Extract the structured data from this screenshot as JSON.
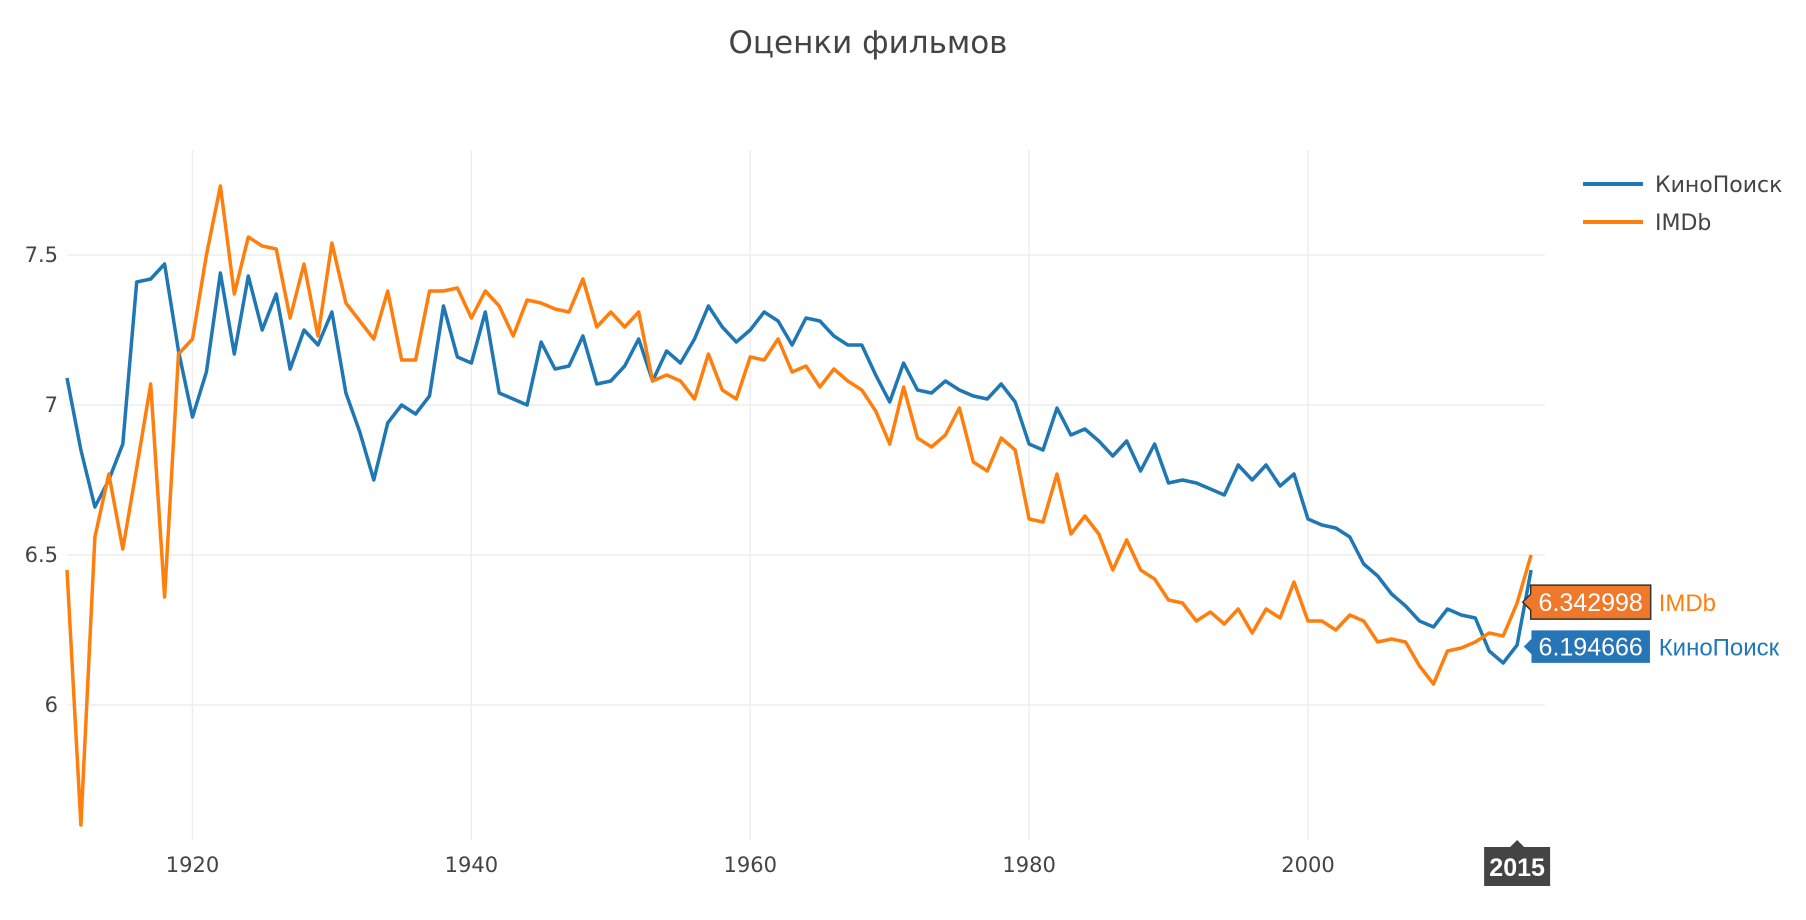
{
  "chart_data": {
    "type": "line",
    "title": "Оценки фильмов",
    "xlabel": "",
    "ylabel": "",
    "xlim": [
      1911,
      2017
    ],
    "ylim": [
      5.55,
      7.85
    ],
    "x_ticks": [
      1920,
      1940,
      1960,
      1980,
      2000
    ],
    "y_ticks": [
      6,
      6.5,
      7,
      7.5
    ],
    "y_tick_labels": [
      "6",
      "6.5",
      "7",
      "7.5"
    ],
    "grid": true,
    "legend_position": "top-right",
    "x": [
      1911,
      1912,
      1913,
      1914,
      1915,
      1916,
      1917,
      1918,
      1919,
      1920,
      1921,
      1922,
      1923,
      1924,
      1925,
      1926,
      1927,
      1928,
      1929,
      1930,
      1931,
      1932,
      1933,
      1934,
      1935,
      1936,
      1937,
      1938,
      1939,
      1940,
      1941,
      1942,
      1943,
      1944,
      1945,
      1946,
      1947,
      1948,
      1949,
      1950,
      1951,
      1952,
      1953,
      1954,
      1955,
      1956,
      1957,
      1958,
      1959,
      1960,
      1961,
      1962,
      1963,
      1964,
      1965,
      1966,
      1967,
      1968,
      1969,
      1970,
      1971,
      1972,
      1973,
      1974,
      1975,
      1976,
      1977,
      1978,
      1979,
      1980,
      1981,
      1982,
      1983,
      1984,
      1985,
      1986,
      1987,
      1988,
      1989,
      1990,
      1991,
      1992,
      1993,
      1994,
      1995,
      1996,
      1997,
      1998,
      1999,
      2000,
      2001,
      2002,
      2003,
      2004,
      2005,
      2006,
      2007,
      2008,
      2009,
      2010,
      2011,
      2012,
      2013,
      2014,
      2015,
      2016
    ],
    "series": [
      {
        "name": "КиноПоиск",
        "color": "#1f77b4",
        "values": [
          7.09,
          6.85,
          6.66,
          6.75,
          6.87,
          7.41,
          7.42,
          7.47,
          7.18,
          6.96,
          7.11,
          7.44,
          7.17,
          7.43,
          7.25,
          7.37,
          7.12,
          7.25,
          7.2,
          7.31,
          7.04,
          6.91,
          6.75,
          6.94,
          7.0,
          6.97,
          7.03,
          7.33,
          7.16,
          7.14,
          7.31,
          7.04,
          7.02,
          7.0,
          7.21,
          7.12,
          7.13,
          7.23,
          7.07,
          7.08,
          7.13,
          7.22,
          7.08,
          7.18,
          7.14,
          7.22,
          7.33,
          7.26,
          7.21,
          7.25,
          7.31,
          7.28,
          7.2,
          7.29,
          7.28,
          7.23,
          7.2,
          7.2,
          7.1,
          7.01,
          7.14,
          7.05,
          7.04,
          7.08,
          7.05,
          7.03,
          7.02,
          7.07,
          7.01,
          6.87,
          6.85,
          6.99,
          6.9,
          6.92,
          6.88,
          6.83,
          6.88,
          6.78,
          6.87,
          6.74,
          6.75,
          6.74,
          6.72,
          6.7,
          6.8,
          6.75,
          6.8,
          6.73,
          6.77,
          6.62,
          6.6,
          6.59,
          6.56,
          6.47,
          6.43,
          6.37,
          6.33,
          6.28,
          6.26,
          6.32,
          6.3,
          6.29,
          6.18,
          6.14,
          6.2,
          6.45
        ]
      },
      {
        "name": "IMDb",
        "color": "#ff7f0e",
        "values": [
          6.45,
          5.6,
          6.56,
          6.77,
          6.52,
          6.79,
          7.07,
          6.36,
          7.17,
          7.22,
          7.5,
          7.73,
          7.37,
          7.56,
          7.53,
          7.52,
          7.29,
          7.47,
          7.23,
          7.54,
          7.34,
          7.28,
          7.22,
          7.38,
          7.15,
          7.15,
          7.38,
          7.38,
          7.39,
          7.29,
          7.38,
          7.33,
          7.23,
          7.35,
          7.34,
          7.32,
          7.31,
          7.42,
          7.26,
          7.31,
          7.26,
          7.31,
          7.08,
          7.1,
          7.08,
          7.02,
          7.17,
          7.05,
          7.02,
          7.16,
          7.15,
          7.22,
          7.11,
          7.13,
          7.06,
          7.12,
          7.08,
          7.05,
          6.98,
          6.87,
          7.06,
          6.89,
          6.86,
          6.9,
          6.99,
          6.81,
          6.78,
          6.89,
          6.85,
          6.62,
          6.61,
          6.77,
          6.57,
          6.63,
          6.57,
          6.45,
          6.55,
          6.45,
          6.42,
          6.35,
          6.34,
          6.28,
          6.31,
          6.27,
          6.32,
          6.24,
          6.32,
          6.29,
          6.41,
          6.28,
          6.28,
          6.25,
          6.3,
          6.28,
          6.21,
          6.22,
          6.21,
          6.13,
          6.07,
          6.18,
          6.19,
          6.21,
          6.24,
          6.23,
          6.34,
          6.5
        ]
      }
    ],
    "hover": {
      "x_label": "2015",
      "entries": [
        {
          "name": "IMDb",
          "value": "6.342998",
          "y": 6.342998,
          "color": "#ff7f0e",
          "fill": "#f0782a"
        },
        {
          "name": "КиноПоиск",
          "value": "6.194666",
          "y": 6.194666,
          "color": "#1f77b4",
          "fill": "#2775b6"
        }
      ]
    }
  }
}
